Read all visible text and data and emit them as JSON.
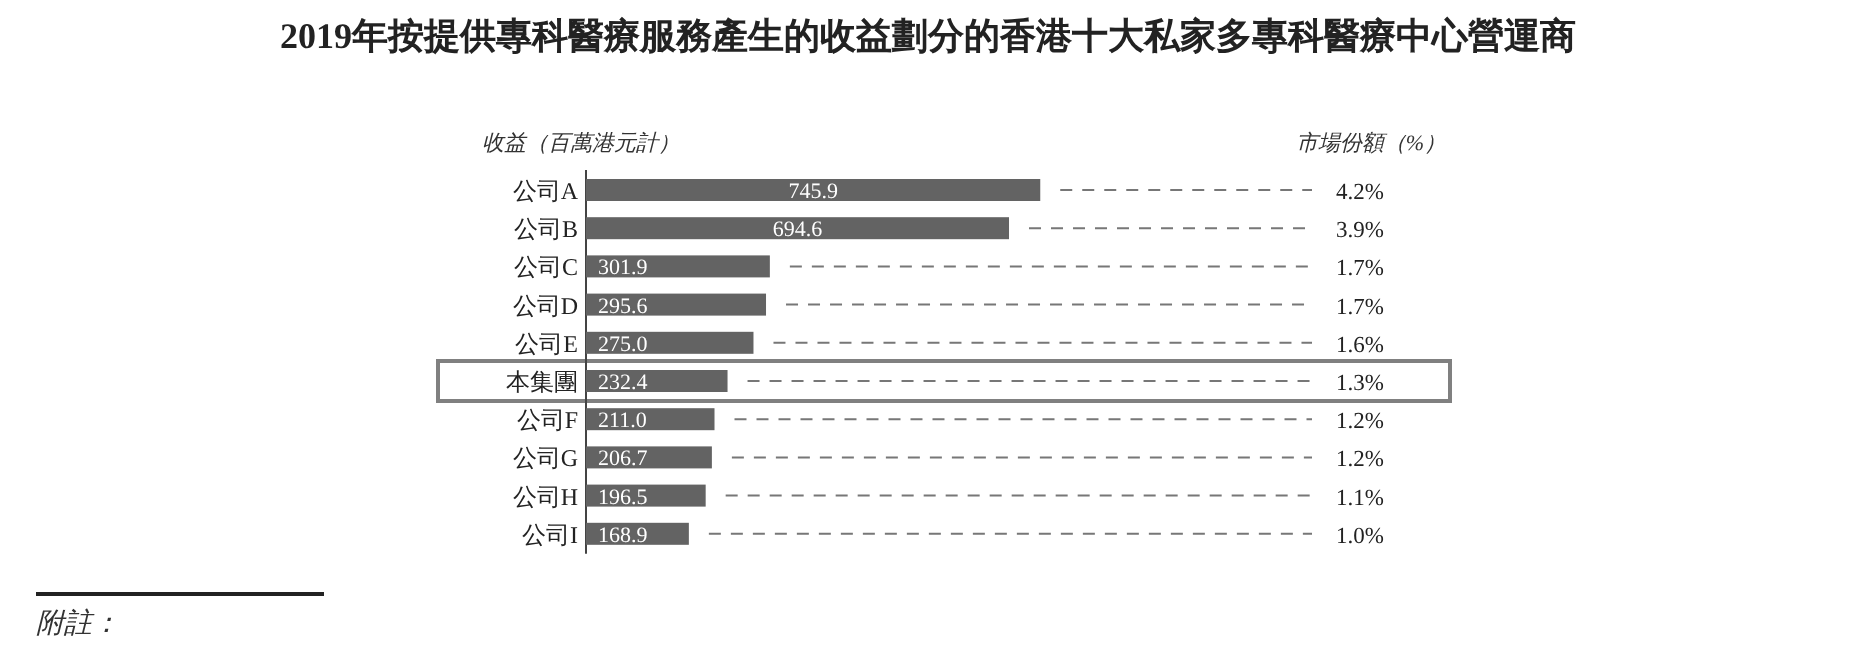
{
  "chart_data": {
    "type": "bar",
    "orientation": "horizontal",
    "title": "2019年按提供專科醫療服務產生的收益劃分的香港十大私家多專科醫療中心營運商",
    "xlabel": "收益（百萬港元計）",
    "categories": [
      "公司A",
      "公司B",
      "公司C",
      "公司D",
      "公司E",
      "本集團",
      "公司F",
      "公司G",
      "公司H",
      "公司I"
    ],
    "values": [
      745.9,
      694.6,
      301.9,
      295.6,
      275.0,
      232.4,
      211.0,
      206.7,
      196.5,
      168.9
    ],
    "value_labels": [
      "745.9",
      "694.6",
      "301.9",
      "295.6",
      "275.0",
      "232.4",
      "211.0",
      "206.7",
      "196.5",
      "168.9"
    ],
    "color": "#636363",
    "annotations": [
      "市場份額（%）",
      "4.2%",
      "3.9%",
      "1.7%",
      "1.7%",
      "1.6%",
      "1.3%",
      "1.2%",
      "1.2%",
      "1.1%",
      "1.0%",
      "附註："
    ]
  }
}
